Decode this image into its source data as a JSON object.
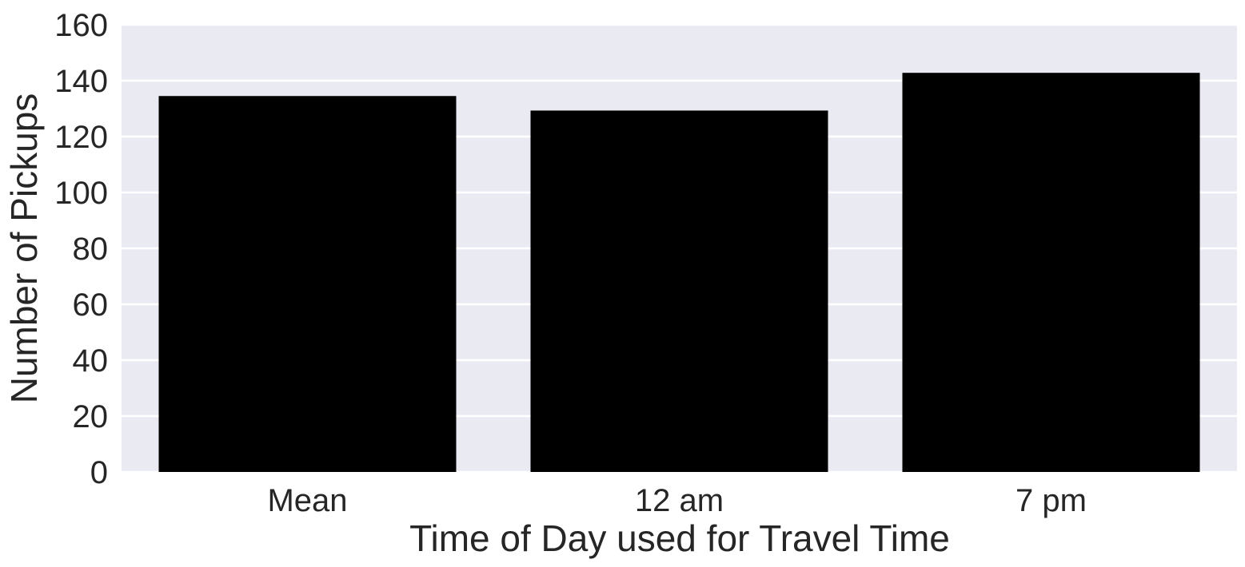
{
  "chart_data": {
    "type": "bar",
    "categories": [
      "Mean",
      "12 am",
      "7 pm"
    ],
    "values": [
      134.5,
      129.3,
      142.8
    ],
    "xlabel": "Time of Day used for Travel Time",
    "ylabel": "Number of Pickups",
    "ylim": [
      0,
      160
    ],
    "yticks": [
      0,
      20,
      40,
      60,
      80,
      100,
      120,
      140,
      160
    ],
    "grid": true,
    "colors": {
      "plot_background": "#eaeaf2",
      "grid": "#ffffff",
      "bar": "#000000",
      "text": "#262626"
    }
  }
}
